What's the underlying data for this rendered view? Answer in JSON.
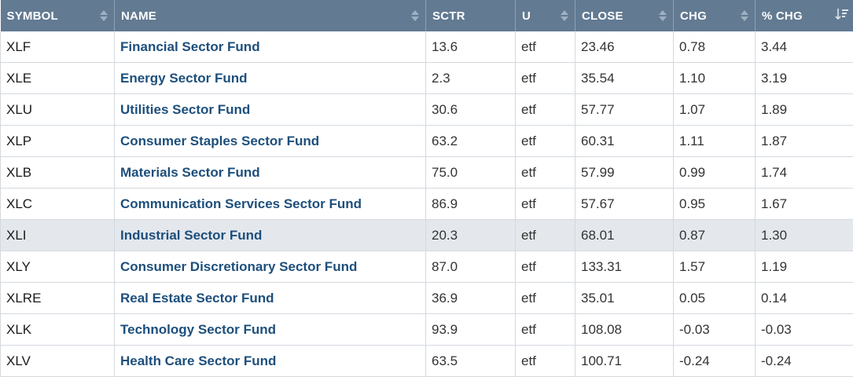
{
  "columns": [
    {
      "key": "symbol",
      "label": "SYMBOL"
    },
    {
      "key": "name",
      "label": "NAME"
    },
    {
      "key": "sctr",
      "label": "SCTR"
    },
    {
      "key": "u",
      "label": "U"
    },
    {
      "key": "close",
      "label": "CLOSE"
    },
    {
      "key": "chg",
      "label": "CHG"
    },
    {
      "key": "pct_chg",
      "label": "% CHG"
    }
  ],
  "icons": {
    "sort": "sort-arrows-icon",
    "active_sort": "sort-descending-icon"
  },
  "colors": {
    "header_bg": "#627a92",
    "link": "#1d4f7c",
    "highlight_row": "#e4e8ed"
  },
  "rows": [
    {
      "symbol": "XLF",
      "name": "Financial Sector Fund",
      "sctr": "13.6",
      "u": "etf",
      "close": "23.46",
      "chg": "0.78",
      "pct_chg": "3.44"
    },
    {
      "symbol": "XLE",
      "name": "Energy Sector Fund",
      "sctr": "2.3",
      "u": "etf",
      "close": "35.54",
      "chg": "1.10",
      "pct_chg": "3.19"
    },
    {
      "symbol": "XLU",
      "name": "Utilities Sector Fund",
      "sctr": "30.6",
      "u": "etf",
      "close": "57.77",
      "chg": "1.07",
      "pct_chg": "1.89"
    },
    {
      "symbol": "XLP",
      "name": "Consumer Staples Sector Fund",
      "sctr": "63.2",
      "u": "etf",
      "close": "60.31",
      "chg": "1.11",
      "pct_chg": "1.87"
    },
    {
      "symbol": "XLB",
      "name": "Materials Sector Fund",
      "sctr": "75.0",
      "u": "etf",
      "close": "57.99",
      "chg": "0.99",
      "pct_chg": "1.74"
    },
    {
      "symbol": "XLC",
      "name": "Communication Services Sector Fund",
      "sctr": "86.9",
      "u": "etf",
      "close": "57.67",
      "chg": "0.95",
      "pct_chg": "1.67"
    },
    {
      "symbol": "XLI",
      "name": "Industrial Sector Fund",
      "sctr": "20.3",
      "u": "etf",
      "close": "68.01",
      "chg": "0.87",
      "pct_chg": "1.30",
      "highlight": true
    },
    {
      "symbol": "XLY",
      "name": "Consumer Discretionary Sector Fund",
      "sctr": "87.0",
      "u": "etf",
      "close": "133.31",
      "chg": "1.57",
      "pct_chg": "1.19"
    },
    {
      "symbol": "XLRE",
      "name": "Real Estate Sector Fund",
      "sctr": "36.9",
      "u": "etf",
      "close": "35.01",
      "chg": "0.05",
      "pct_chg": "0.14"
    },
    {
      "symbol": "XLK",
      "name": "Technology Sector Fund",
      "sctr": "93.9",
      "u": "etf",
      "close": "108.08",
      "chg": "-0.03",
      "pct_chg": "-0.03"
    },
    {
      "symbol": "XLV",
      "name": "Health Care Sector Fund",
      "sctr": "63.5",
      "u": "etf",
      "close": "100.71",
      "chg": "-0.24",
      "pct_chg": "-0.24"
    }
  ]
}
